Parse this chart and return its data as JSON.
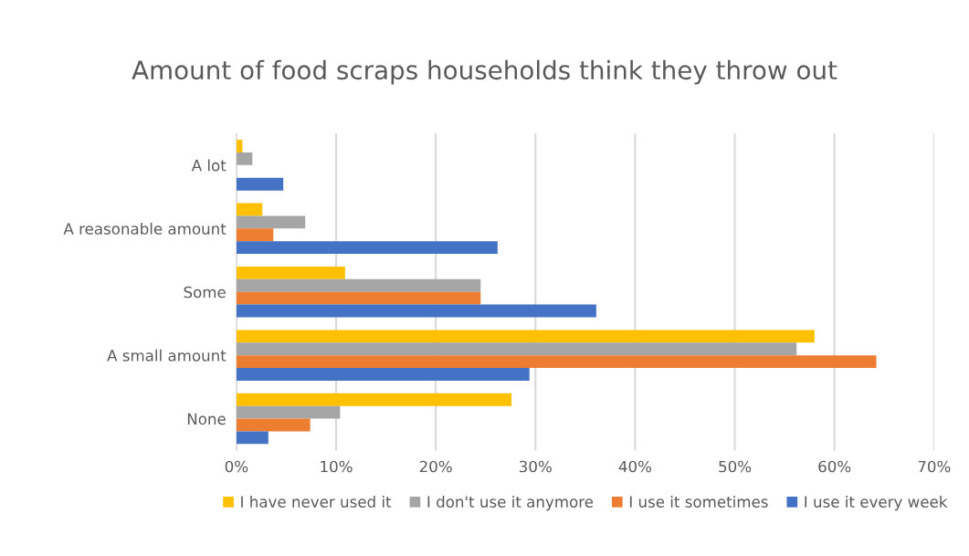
{
  "chart_data": {
    "type": "bar",
    "orientation": "horizontal",
    "title": "Amount of food scraps households think they throw out",
    "categories": [
      "A lot",
      "A reasonable amount",
      "Some",
      "A small amount",
      "None"
    ],
    "series": [
      {
        "name": "I have never used it",
        "color": "#ffc000",
        "values": [
          0.6,
          2.6,
          10.9,
          58.0,
          27.6
        ]
      },
      {
        "name": "I don't use it anymore",
        "color": "#a5a5a5",
        "values": [
          1.6,
          6.9,
          24.5,
          56.2,
          10.4
        ]
      },
      {
        "name": "I use it sometimes",
        "color": "#ed7d31",
        "values": [
          0,
          3.7,
          24.5,
          64.2,
          7.4
        ]
      },
      {
        "name": "I use it every week",
        "color": "#4472c4",
        "values": [
          4.7,
          26.2,
          36.1,
          29.4,
          3.2
        ]
      }
    ],
    "xlim": [
      0,
      70
    ],
    "xticks": [
      {
        "value": 0,
        "label": "0%"
      },
      {
        "value": 10,
        "label": "10%"
      },
      {
        "value": 20,
        "label": "20%"
      },
      {
        "value": 30,
        "label": "30%"
      },
      {
        "value": 40,
        "label": "40%"
      },
      {
        "value": 50,
        "label": "50%"
      },
      {
        "value": 60,
        "label": "60%"
      },
      {
        "value": 70,
        "label": "70%"
      }
    ],
    "grid": "x",
    "legend": "bottom"
  }
}
